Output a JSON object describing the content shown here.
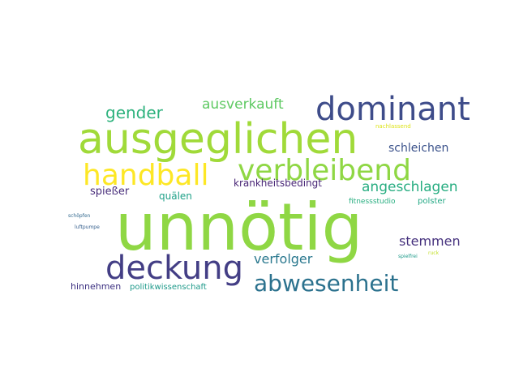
{
  "words": [
    {
      "text": "unnötig",
      "color": "#8fd744"
    },
    {
      "text": "ausgeglichen",
      "color": "#a0da39"
    },
    {
      "text": "dominant",
      "color": "#3e4c8a"
    },
    {
      "text": "deckung",
      "color": "#433e85"
    },
    {
      "text": "verbleibend",
      "color": "#8fd744"
    },
    {
      "text": "handball",
      "color": "#fde725"
    },
    {
      "text": "abwesenheit",
      "color": "#2c728e"
    },
    {
      "text": "gender",
      "color": "#2db27d"
    },
    {
      "text": "ausverkauft",
      "color": "#5ec962"
    },
    {
      "text": "schleichen",
      "color": "#3b528b"
    },
    {
      "text": "angeschlagen",
      "color": "#27ad81"
    },
    {
      "text": "stemmen",
      "color": "#46327e"
    },
    {
      "text": "verfolger",
      "color": "#2a788e"
    },
    {
      "text": "krankheitsbedingt",
      "color": "#482576"
    },
    {
      "text": "spießer",
      "color": "#472c7a"
    },
    {
      "text": "quälen",
      "color": "#1fa188"
    },
    {
      "text": "polster",
      "color": "#22a884"
    },
    {
      "text": "fitnessstudio",
      "color": "#28ae80"
    },
    {
      "text": "hinnehmen",
      "color": "#3b2f80"
    },
    {
      "text": "politikwissenschaft",
      "color": "#1f9a8a"
    },
    {
      "text": "nachlassend",
      "color": "#dde318"
    },
    {
      "text": "schöpfen",
      "color": "#31688e"
    },
    {
      "text": "luftpumpe",
      "color": "#355f8d"
    },
    {
      "text": "spielfrei",
      "color": "#1e9b8a"
    },
    {
      "text": "ruck",
      "color": "#c2df23"
    }
  ]
}
